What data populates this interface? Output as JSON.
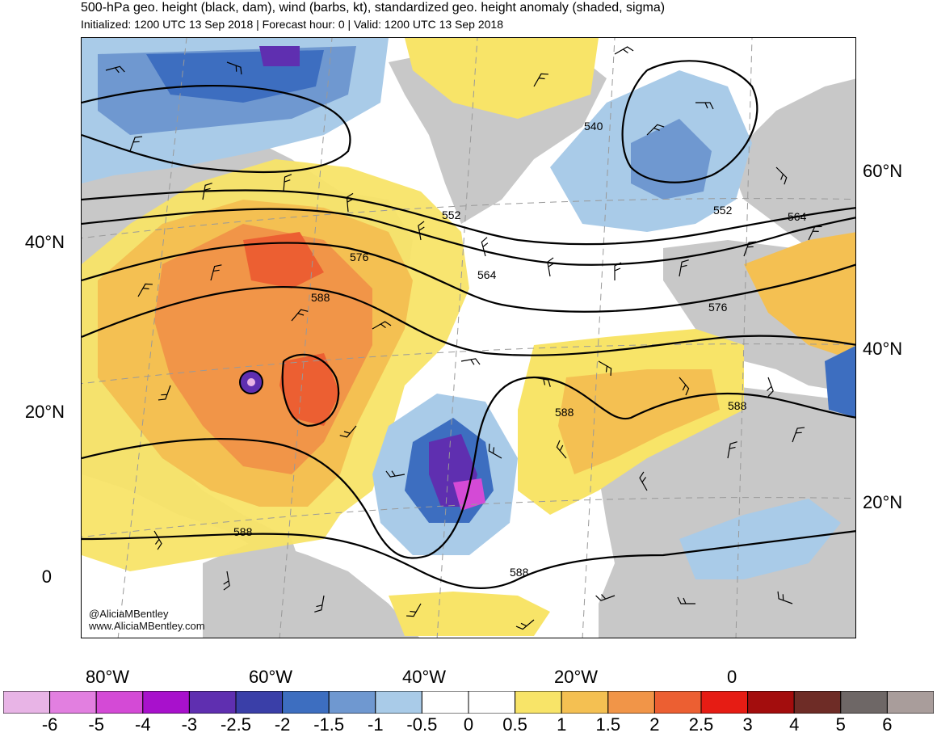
{
  "title": "500-hPa geo. height (black, dam), wind (barbs, kt), standardized geo. height anomaly (shaded, sigma)",
  "subtitle": "Initialized: 1200 UTC 13 Sep 2018 | Forecast hour: 0 | Valid: 1200 UTC 13 Sep 2018",
  "credit": {
    "twitter": "@AliciaMBentley",
    "website": "www.AliciaMBentley.com"
  },
  "lat_labels_left": [
    "40°N",
    "20°N",
    "0"
  ],
  "lat_labels_right": [
    "60°N",
    "40°N",
    "20°N"
  ],
  "lon_labels": [
    "80°W",
    "60°W",
    "40°W",
    "20°W",
    "0"
  ],
  "contour_labels": [
    "540",
    "552",
    "552",
    "564",
    "564",
    "576",
    "576",
    "588",
    "588",
    "588",
    "588",
    "588"
  ],
  "colorbar": {
    "labels": [
      "-6",
      "-5",
      "-4",
      "-3",
      "-2.5",
      "-2",
      "-1.5",
      "-1",
      "-0.5",
      "0",
      "0.5",
      "1",
      "1.5",
      "2",
      "2.5",
      "3",
      "4",
      "5",
      "6"
    ],
    "colors": [
      "#e8b4e6",
      "#e27fe0",
      "#d44ad6",
      "#a811cc",
      "#5f2fb0",
      "#3a3fa8",
      "#3d6ec0",
      "#6f98d0",
      "#a9cbe8",
      "#ffffff",
      "#ffffff",
      "#f8e468",
      "#f4c052",
      "#f19548",
      "#ec5f32",
      "#e61c14",
      "#a30d0d",
      "#6e2c26",
      "#6e6766",
      "#a99d9b"
    ]
  },
  "colors": {
    "land": "#c8c8c8",
    "contour": "#000000",
    "ocean": "#ffffff"
  }
}
